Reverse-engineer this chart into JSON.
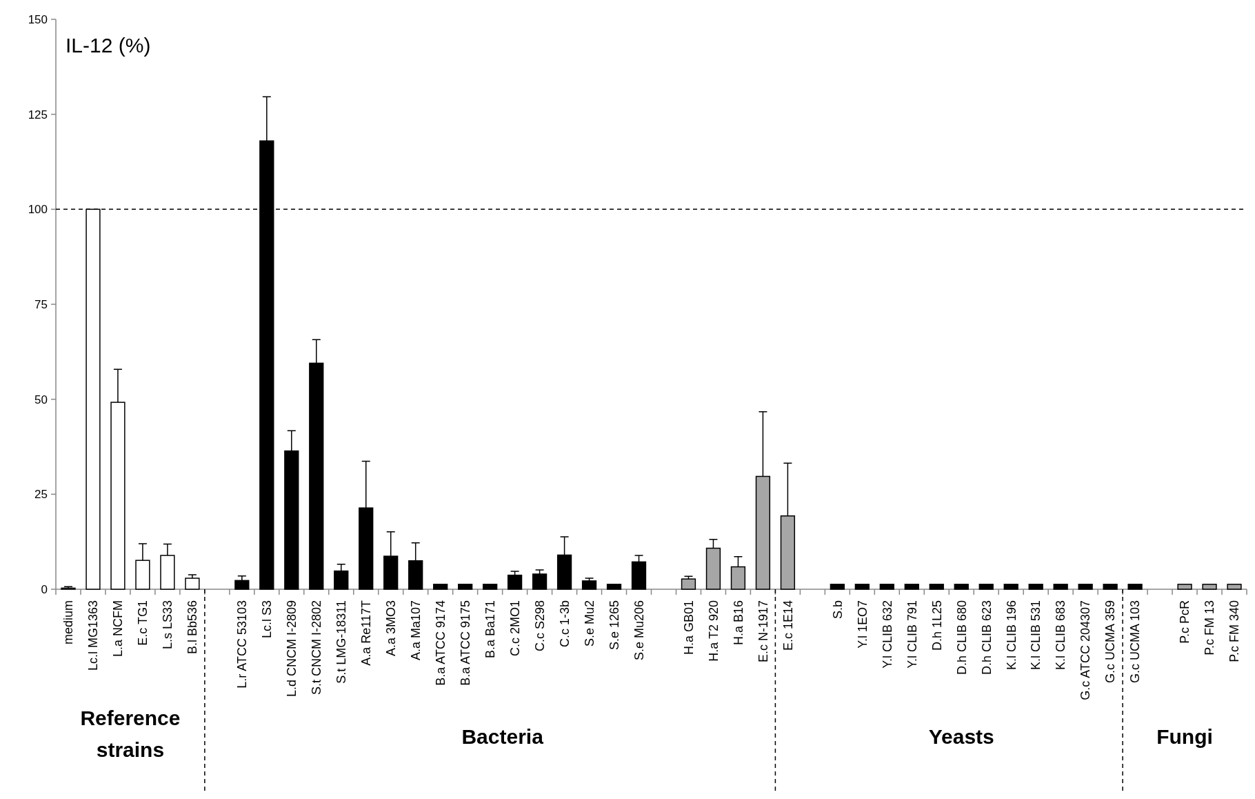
{
  "chart_data": {
    "type": "bar",
    "title": "IL-12 (%)",
    "categories": [
      "medium",
      "Lc.l MG1363",
      "L.a NCFM",
      "E.c TG1",
      "L.s LS33",
      "B.l Bb536",
      null,
      "L.r ATCC 53103",
      "Lc.l S3",
      "L.d CNCM I-2809",
      "S.t CNCM I-2802",
      "S.t LMG-18311",
      "A.a Re117T",
      "A.a 3MO3",
      "A.a Ma107",
      "B.a ATCC 9174",
      "B.a ATCC 9175",
      "B.a Ba171",
      "C.c 2MO1",
      "C.c S298",
      "C.c 1-3b",
      "S.e Mu2",
      "S.e 1265",
      "S.e Mu206",
      null,
      "H.a GB01",
      "H.a T2 920",
      "H.a B16",
      "E.c N-1917",
      "E.c 1E14",
      null,
      "S.b",
      "Y.l 1EO7",
      "Y.l  CLIB 632",
      "Y.l  CLIB 791",
      "D.h 1L25",
      "D.h CLIB 680",
      "D.h CLIB 623",
      "K.l CLIB 196",
      "K.l CLIB 531",
      "K.l  CLIB 683",
      "G.c ATCC 204307",
      "G.c UCMA 359",
      "G.c UCMA 103",
      null,
      "P.c PcR",
      "P.c FM 13",
      "P.c FM 340"
    ],
    "values": [
      0.3,
      100,
      49.2,
      7.6,
      8.9,
      2.9,
      null,
      2.3,
      118,
      36.4,
      59.5,
      4.8,
      21.4,
      8.7,
      7.5,
      1.3,
      1.3,
      1.3,
      3.7,
      4.0,
      9.0,
      2.2,
      1.3,
      7.2,
      null,
      2.7,
      10.8,
      5.9,
      29.7,
      19.3,
      null,
      1.3,
      1.3,
      1.3,
      1.3,
      1.3,
      1.3,
      1.3,
      1.3,
      1.3,
      1.3,
      1.3,
      1.3,
      1.3,
      null,
      1.3,
      1.3,
      1.3
    ],
    "errors": [
      [
        0.3,
        0.4
      ],
      null,
      8.7,
      4.4,
      3.0,
      0.9,
      null,
      1.2,
      11.6,
      5.3,
      6.2,
      1.8,
      12.3,
      6.4,
      4.7,
      null,
      null,
      null,
      1.0,
      1.1,
      4.8,
      0.7,
      null,
      1.7,
      null,
      0.7,
      2.3,
      2.7,
      17,
      13.9,
      null,
      null,
      null,
      null,
      null,
      null,
      null,
      null,
      null,
      null,
      null,
      null,
      null,
      null,
      null,
      null,
      null,
      null
    ],
    "colors": [
      "#ffffff",
      "#ffffff",
      "#ffffff",
      "#ffffff",
      "#ffffff",
      "#ffffff",
      null,
      "#000000",
      "#000000",
      "#000000",
      "#000000",
      "#000000",
      "#000000",
      "#000000",
      "#000000",
      "#000000",
      "#000000",
      "#000000",
      "#000000",
      "#000000",
      "#000000",
      "#000000",
      "#000000",
      "#000000",
      null,
      "#a6a6a6",
      "#a6a6a6",
      "#a6a6a6",
      "#a6a6a6",
      "#a6a6a6",
      null,
      "#000000",
      "#000000",
      "#000000",
      "#000000",
      "#000000",
      "#000000",
      "#000000",
      "#000000",
      "#000000",
      "#000000",
      "#000000",
      "#000000",
      "#000000",
      null,
      "#a6a6a6",
      "#a6a6a6",
      "#a6a6a6"
    ],
    "ylim": [
      0,
      150
    ],
    "yticks": [
      0,
      25,
      50,
      75,
      100,
      125,
      150
    ],
    "ref_lines": [
      {
        "axis": "y",
        "value": 100,
        "line_style": "dashed",
        "color": "#000000"
      }
    ],
    "annotations": [
      "Reference strains",
      "Bacteria",
      "Yeasts",
      "Fungi"
    ],
    "grid": false
  }
}
